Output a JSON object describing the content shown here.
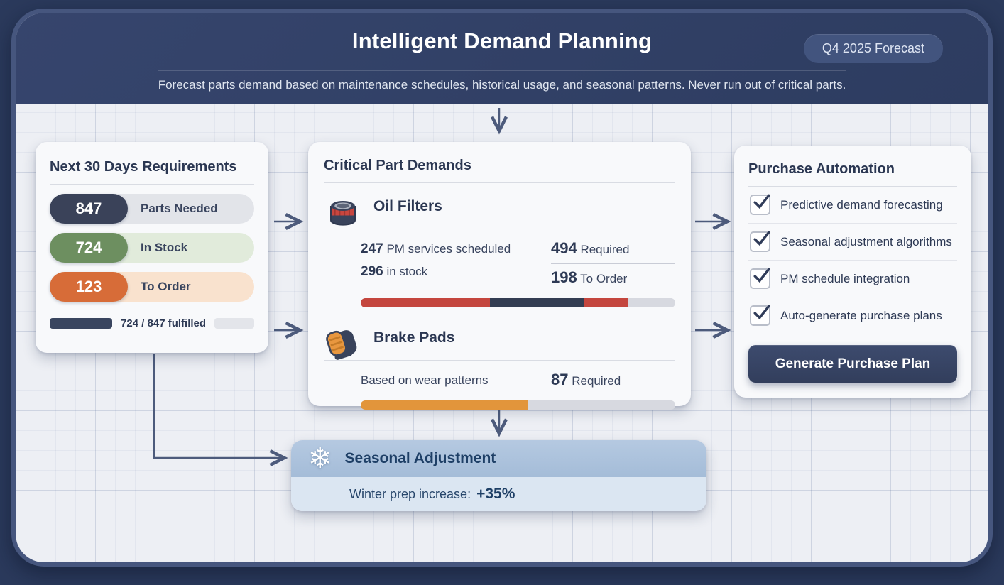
{
  "header": {
    "title": "Intelligent Demand Planning",
    "badge": "Q4 2025 Forecast",
    "subtitle": "Forecast parts demand based on maintenance schedules, historical usage, and seasonal patterns. Never run out of critical parts."
  },
  "requirements_card": {
    "title": "Next 30 Days Requirements",
    "stats": [
      {
        "value": "847",
        "label": "Parts Needed",
        "pill_color": "#3a4259",
        "track_color": "#e2e4e9"
      },
      {
        "value": "724",
        "label": "In Stock",
        "pill_color": "#6d8f60",
        "track_color": "#e1ebdb"
      },
      {
        "value": "123",
        "label": "To Order",
        "pill_color": "#d76c38",
        "track_color": "#f9e2ce"
      }
    ],
    "fulfilled": {
      "label": "724 / 847 fulfilled",
      "bar_color": "#39455f"
    }
  },
  "demands_card": {
    "title": "Critical Part Demands",
    "oil": {
      "name": "Oil Filters",
      "icon": "oil-filter-icon",
      "scheduled_value": "247",
      "scheduled_label": "PM services scheduled",
      "stock_value": "296",
      "stock_label": "in stock",
      "required_value": "494",
      "required_label": "Required",
      "order_value": "198",
      "order_label": "To Order",
      "bar": [
        {
          "color": "#c4463e",
          "pct": 41
        },
        {
          "color": "#333d52",
          "pct": 30
        },
        {
          "color": "#c4463e",
          "pct": 14
        },
        {
          "color": "#d7d9e0",
          "pct": 15
        }
      ]
    },
    "brake": {
      "name": "Brake Pads",
      "icon": "brake-pad-icon",
      "note": "Based on wear patterns",
      "required_value": "87",
      "required_label": "Required",
      "bar": [
        {
          "color": "#e2953b",
          "pct": 53
        },
        {
          "color": "#d7d9e0",
          "pct": 47
        }
      ]
    }
  },
  "automation_card": {
    "title": "Purchase Automation",
    "items": [
      {
        "label": "Predictive demand forecasting",
        "checked": true
      },
      {
        "label": "Seasonal adjustment algorithms",
        "checked": true
      },
      {
        "label": "PM schedule integration",
        "checked": true
      },
      {
        "label": "Auto-generate purchase plans",
        "checked": true
      }
    ],
    "button_label": "Generate Purchase Plan"
  },
  "seasonal_card": {
    "title": "Seasonal Adjustment",
    "icon": "snowflake-icon",
    "note_label": "Winter prep increase:",
    "note_value": "+35%"
  },
  "colors": {
    "header_bg": "#32416a",
    "accent_navy": "#39455f",
    "accent_green": "#6d8f60",
    "accent_orange": "#d76c38",
    "accent_red": "#c4463e",
    "seasonal_header": "#aec4de",
    "seasonal_body": "#dbe6f2",
    "arrow": "#4d5b7c"
  }
}
